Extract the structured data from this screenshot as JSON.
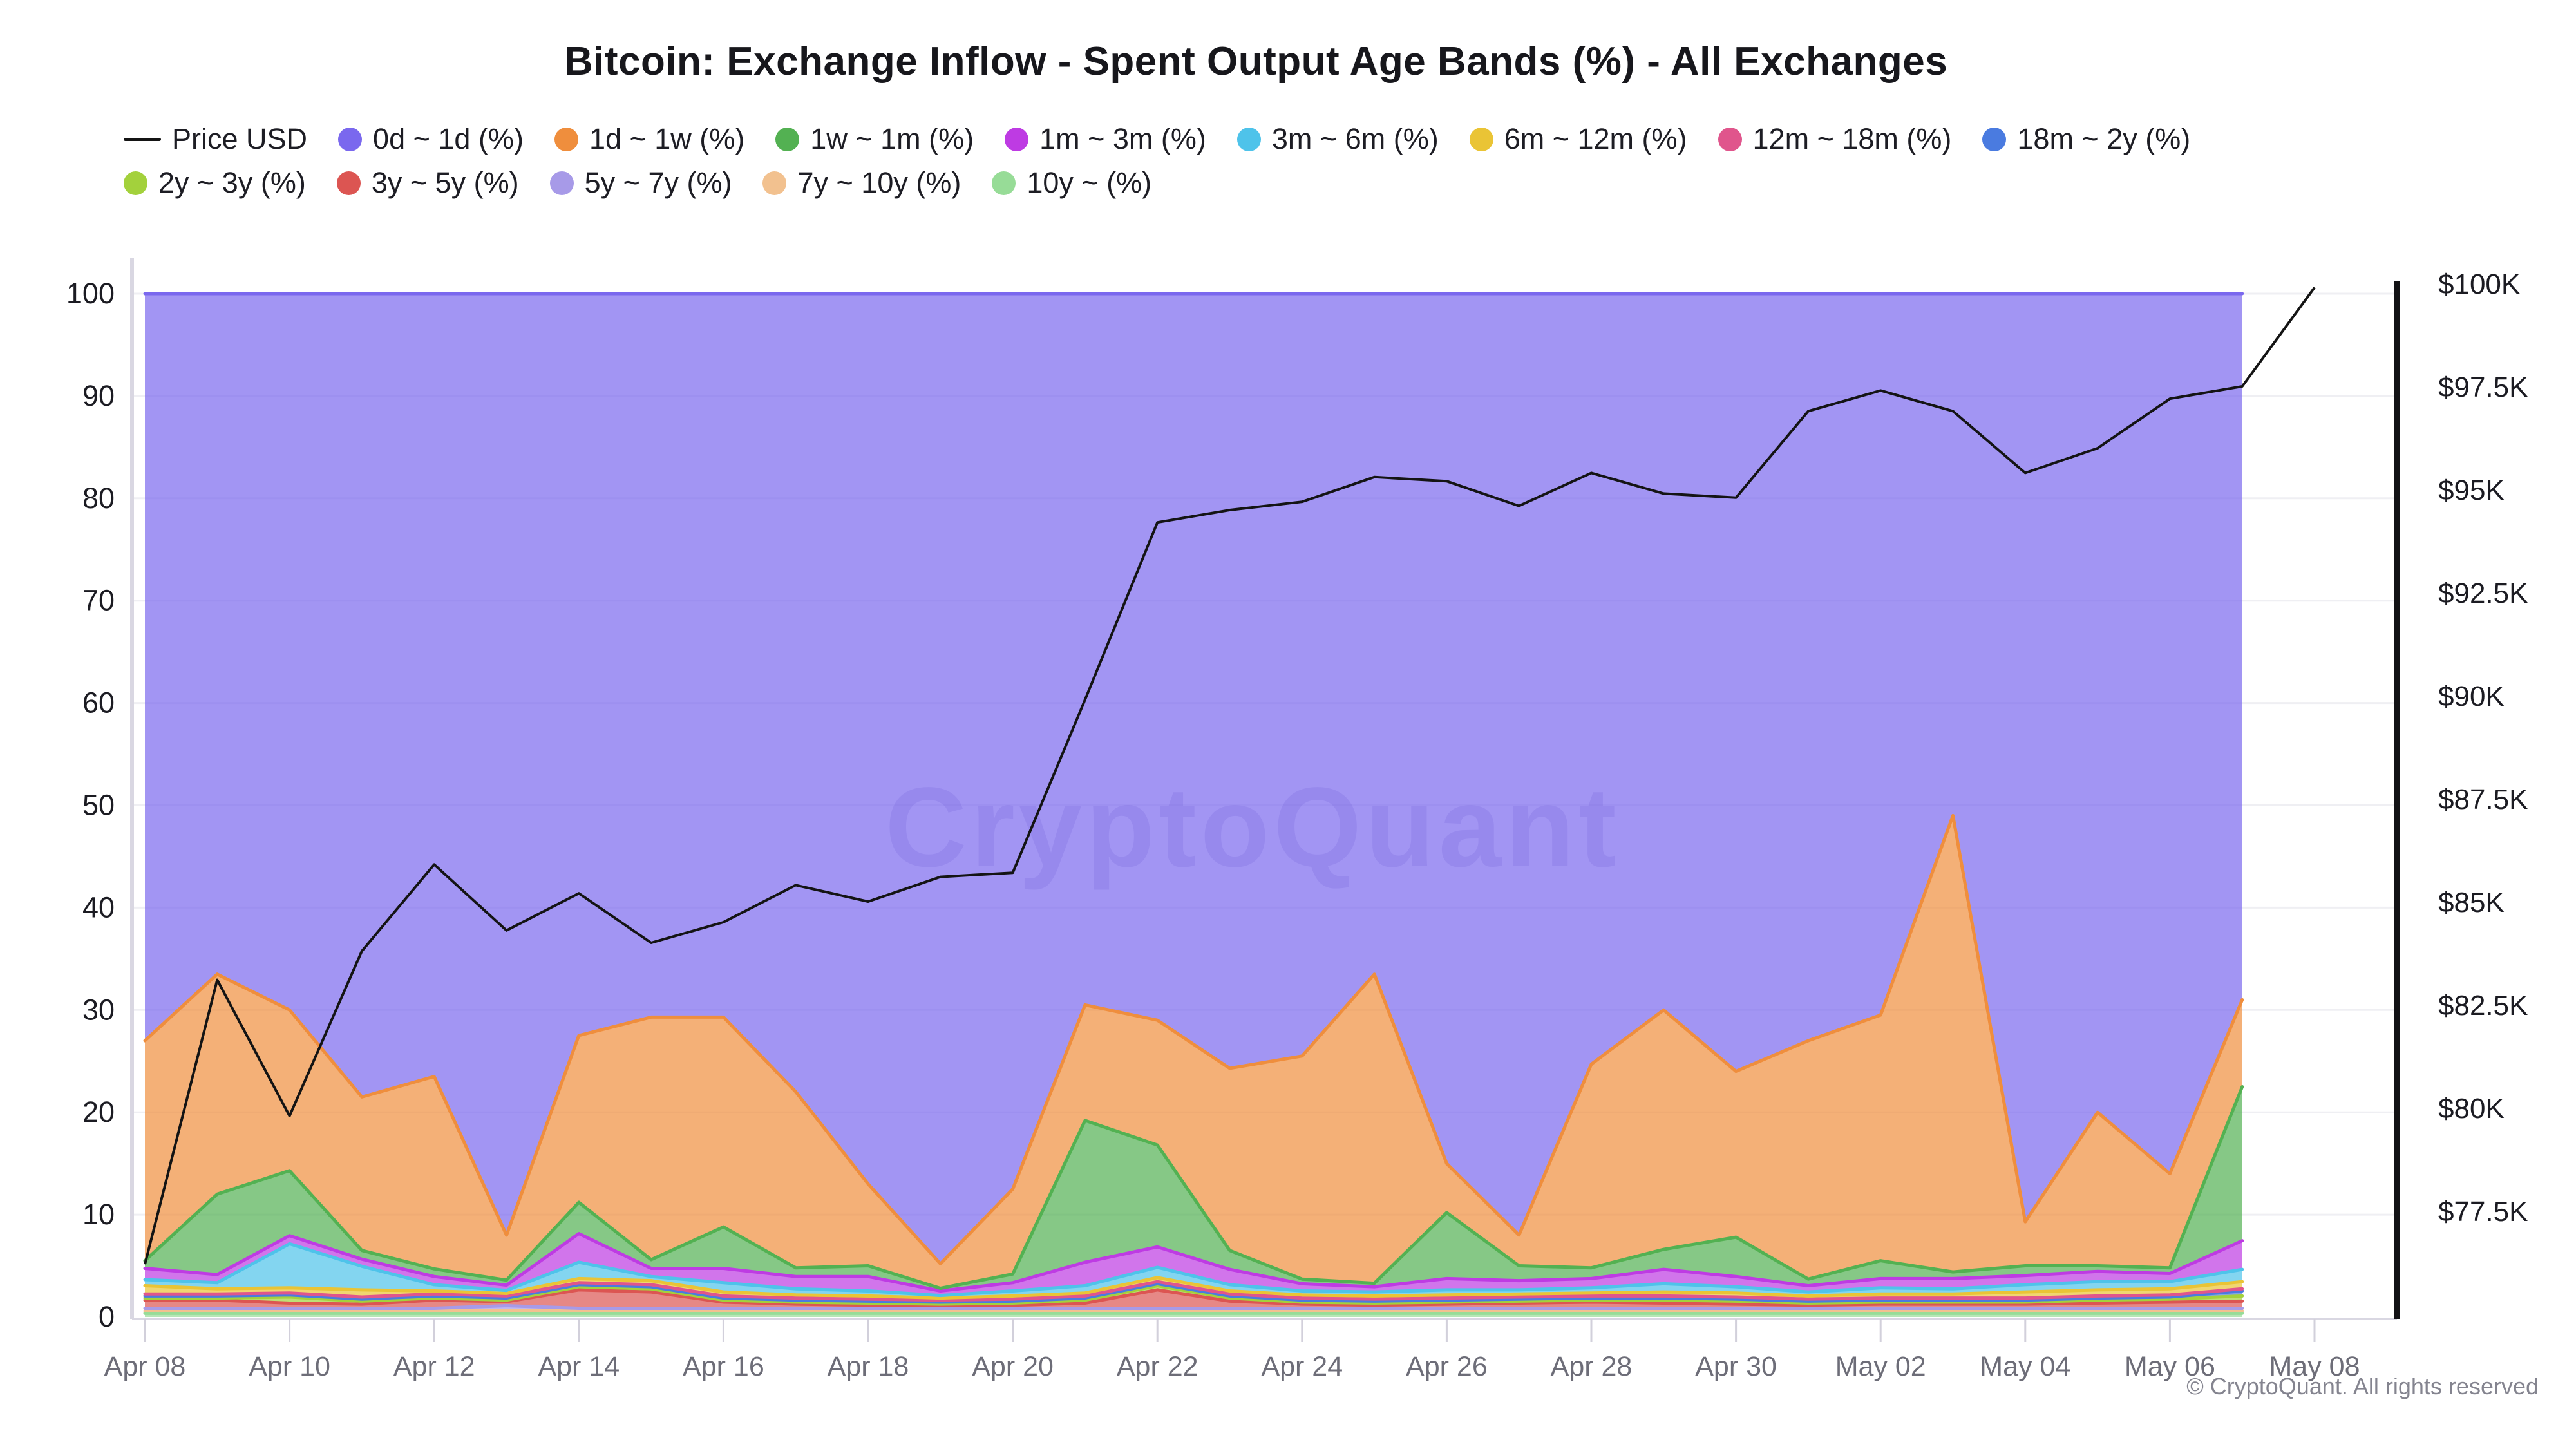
{
  "title": "Bitcoin: Exchange Inflow - Spent Output Age Bands (%) - All Exchanges",
  "watermark": "CryptoQuant",
  "copyright": "© CryptoQuant. All rights reserved",
  "accent_colors": {
    "price_line": "#141414",
    "left_axis_spine": "#d9d7e2",
    "right_axis_spine": "#121215",
    "gridline": "#efeff3",
    "x_label": "#6d6d78",
    "y_label": "#1b1b22"
  },
  "legend": {
    "rows": [
      [
        {
          "label": "Price USD",
          "color": "#141414",
          "type": "line"
        },
        {
          "label": "0d ~ 1d (%)",
          "color": "#7A68EE",
          "type": "dot"
        },
        {
          "label": "1d ~ 1w (%)",
          "color": "#EF8E3D",
          "type": "dot"
        },
        {
          "label": "1w ~ 1m (%)",
          "color": "#53B152",
          "type": "dot"
        },
        {
          "label": "1m ~ 3m (%)",
          "color": "#BE3BE3",
          "type": "dot"
        },
        {
          "label": "3m ~ 6m (%)",
          "color": "#4EC3EA",
          "type": "dot"
        },
        {
          "label": "6m ~ 12m (%)",
          "color": "#EAC435",
          "type": "dot"
        },
        {
          "label": "12m ~ 18m (%)",
          "color": "#E0558C",
          "type": "dot"
        },
        {
          "label": "18m ~ 2y (%)",
          "color": "#4A7BE0",
          "type": "dot"
        }
      ],
      [
        {
          "label": "2y ~ 3y (%)",
          "color": "#A3D13C",
          "type": "dot"
        },
        {
          "label": "3y ~ 5y (%)",
          "color": "#DC5552",
          "type": "dot"
        },
        {
          "label": "5y ~ 7y (%)",
          "color": "#A79AE8",
          "type": "dot"
        },
        {
          "label": "7y ~ 10y (%)",
          "color": "#F2C18F",
          "type": "dot"
        },
        {
          "label": "10y ~ (%)",
          "color": "#97DC97",
          "type": "dot"
        }
      ]
    ]
  },
  "chart_data": {
    "type": "area",
    "stacked": true,
    "title": "Bitcoin: Exchange Inflow - Spent Output Age Bands (%) - All Exchanges",
    "legend_position": "top",
    "grid": "horizontal-faint",
    "x": [
      "Apr 08",
      "Apr 09",
      "Apr 10",
      "Apr 11",
      "Apr 12",
      "Apr 13",
      "Apr 14",
      "Apr 15",
      "Apr 16",
      "Apr 17",
      "Apr 18",
      "Apr 19",
      "Apr 20",
      "Apr 21",
      "Apr 22",
      "Apr 23",
      "Apr 24",
      "Apr 25",
      "Apr 26",
      "Apr 27",
      "Apr 28",
      "Apr 29",
      "Apr 30",
      "May 01",
      "May 02",
      "May 03",
      "May 04",
      "May 05",
      "May 06",
      "May 07"
    ],
    "x_tick_labels": [
      "Apr 08",
      "Apr 10",
      "Apr 12",
      "Apr 14",
      "Apr 16",
      "Apr 18",
      "Apr 20",
      "Apr 22",
      "Apr 24",
      "Apr 26",
      "Apr 28",
      "Apr 30",
      "May 02",
      "May 04",
      "May 06",
      "May 08"
    ],
    "ylim_left": [
      0,
      100
    ],
    "yticks_left": [
      0,
      10,
      20,
      30,
      40,
      50,
      60,
      70,
      80,
      90,
      100
    ],
    "right_axis": {
      "unit": "USD",
      "ticks_k": [
        100,
        97.5,
        95,
        92.5,
        90,
        87.5,
        85,
        82.5,
        80,
        77.5
      ],
      "labels": [
        "$100K",
        "$97.5K",
        "$95K",
        "$92.5K",
        "$90K",
        "$87.5K",
        "$85K",
        "$82.5K",
        "$80K",
        "$77.5K"
      ]
    },
    "series": [
      {
        "name": "10y ~ (%)",
        "color": "#97DC97",
        "values": [
          0.35,
          0.35,
          0.35,
          0.35,
          0.35,
          0.35,
          0.35,
          0.35,
          0.35,
          0.35,
          0.35,
          0.35,
          0.35,
          0.35,
          0.35,
          0.35,
          0.35,
          0.35,
          0.35,
          0.35,
          0.35,
          0.35,
          0.35,
          0.35,
          0.35,
          0.35,
          0.35,
          0.35,
          0.35,
          0.35
        ]
      },
      {
        "name": "7y ~ 10y (%)",
        "color": "#F2C18F",
        "values": [
          0.25,
          0.25,
          0.25,
          0.25,
          0.25,
          0.25,
          0.25,
          0.25,
          0.25,
          0.25,
          0.25,
          0.25,
          0.25,
          0.25,
          0.25,
          0.25,
          0.25,
          0.25,
          0.25,
          0.25,
          0.25,
          0.25,
          0.25,
          0.25,
          0.25,
          0.25,
          0.25,
          0.25,
          0.25,
          0.25
        ]
      },
      {
        "name": "5y ~ 7y (%)",
        "color": "#A79AE8",
        "values": [
          0.25,
          0.25,
          0.25,
          0.25,
          0.25,
          0.5,
          0.25,
          0.25,
          0.25,
          0.25,
          0.25,
          0.25,
          0.25,
          0.25,
          0.25,
          0.25,
          0.25,
          0.25,
          0.25,
          0.25,
          0.25,
          0.25,
          0.25,
          0.25,
          0.25,
          0.25,
          0.25,
          0.25,
          0.25,
          0.25
        ]
      },
      {
        "name": "3y ~ 5y (%)",
        "color": "#DC5552",
        "values": [
          0.8,
          0.8,
          0.5,
          0.4,
          0.8,
          0.4,
          1.8,
          1.6,
          0.6,
          0.4,
          0.3,
          0.25,
          0.3,
          0.5,
          1.8,
          0.7,
          0.4,
          0.3,
          0.4,
          0.5,
          0.6,
          0.5,
          0.4,
          0.3,
          0.4,
          0.4,
          0.4,
          0.5,
          0.6,
          0.7
        ]
      },
      {
        "name": "2y ~ 3y (%)",
        "color": "#A3D13C",
        "values": [
          0.2,
          0.2,
          0.6,
          0.3,
          0.2,
          0.15,
          0.3,
          0.3,
          0.2,
          0.2,
          0.2,
          0.15,
          0.2,
          0.3,
          0.4,
          0.3,
          0.2,
          0.2,
          0.2,
          0.2,
          0.2,
          0.3,
          0.3,
          0.2,
          0.2,
          0.2,
          0.2,
          0.3,
          0.3,
          0.5
        ]
      },
      {
        "name": "18m ~ 2y (%)",
        "color": "#4A7BE0",
        "values": [
          0.2,
          0.2,
          0.2,
          0.2,
          0.2,
          0.2,
          0.2,
          0.2,
          0.2,
          0.2,
          0.2,
          0.2,
          0.2,
          0.2,
          0.2,
          0.2,
          0.2,
          0.2,
          0.2,
          0.2,
          0.2,
          0.2,
          0.2,
          0.2,
          0.2,
          0.2,
          0.2,
          0.2,
          0.2,
          0.5
        ]
      },
      {
        "name": "12m ~ 18m (%)",
        "color": "#E0558C",
        "values": [
          0.2,
          0.2,
          0.2,
          0.2,
          0.2,
          0.2,
          0.2,
          0.2,
          0.2,
          0.2,
          0.2,
          0.2,
          0.2,
          0.2,
          0.2,
          0.2,
          0.2,
          0.2,
          0.2,
          0.2,
          0.2,
          0.2,
          0.2,
          0.2,
          0.2,
          0.2,
          0.2,
          0.2,
          0.2,
          0.2
        ]
      },
      {
        "name": "6m ~ 12m (%)",
        "color": "#EAC435",
        "values": [
          0.8,
          0.5,
          0.5,
          0.7,
          0.3,
          0.25,
          0.4,
          0.4,
          0.4,
          0.3,
          0.3,
          0.2,
          0.3,
          0.3,
          0.4,
          0.3,
          0.3,
          0.3,
          0.3,
          0.3,
          0.3,
          0.4,
          0.4,
          0.3,
          0.4,
          0.4,
          0.6,
          0.6,
          0.6,
          0.7
        ]
      },
      {
        "name": "3m ~ 6m (%)",
        "color": "#4EC3EA",
        "values": [
          0.6,
          0.6,
          4.3,
          2.3,
          0.6,
          0.3,
          1.6,
          0.4,
          0.9,
          0.6,
          0.5,
          0.25,
          0.5,
          0.7,
          1.0,
          0.6,
          0.4,
          0.4,
          0.5,
          0.4,
          0.5,
          0.8,
          0.6,
          0.4,
          0.6,
          0.5,
          0.7,
          0.8,
          0.7,
          1.2
        ]
      },
      {
        "name": "1m ~ 3m (%)",
        "color": "#BE3BE3",
        "values": [
          1.1,
          0.8,
          0.8,
          0.7,
          0.8,
          0.5,
          2.8,
          0.8,
          1.4,
          1.2,
          1.4,
          0.45,
          0.8,
          2.3,
          2.0,
          1.5,
          0.7,
          0.5,
          1.1,
          0.9,
          0.9,
          1.4,
          1.0,
          0.6,
          0.9,
          1.0,
          0.9,
          1.0,
          0.8,
          2.8
        ]
      },
      {
        "name": "1w ~ 1m (%)",
        "color": "#53B152",
        "values": [
          0.75,
          7.85,
          6.35,
          0.85,
          0.75,
          0.5,
          3.05,
          0.85,
          4.05,
          0.85,
          1.05,
          0.25,
          0.85,
          13.85,
          9.95,
          1.85,
          0.45,
          0.35,
          6.45,
          1.45,
          1.05,
          1.95,
          3.85,
          0.65,
          1.75,
          0.65,
          0.95,
          0.55,
          0.55,
          15.05
        ]
      },
      {
        "name": "1d ~ 1w (%)",
        "color": "#EF8E3D",
        "values": [
          21.5,
          21.5,
          15.7,
          15.0,
          18.8,
          4.4,
          16.3,
          23.7,
          20.5,
          17.2,
          8.0,
          2.4,
          8.3,
          11.3,
          12.2,
          17.8,
          21.8,
          30.2,
          4.8,
          3.0,
          19.9,
          23.4,
          16.2,
          23.3,
          24.0,
          44.6,
          4.3,
          15.0,
          9.2,
          8.5
        ]
      },
      {
        "name": "0d ~ 1d (%)",
        "color": "#7A68EE",
        "values": "remainder"
      }
    ],
    "price_series": {
      "name": "Price USD",
      "color": "#141414",
      "x": [
        "Apr 08",
        "Apr 09",
        "Apr 10",
        "Apr 11",
        "Apr 12",
        "Apr 13",
        "Apr 14",
        "Apr 15",
        "Apr 16",
        "Apr 17",
        "Apr 18",
        "Apr 19",
        "Apr 20",
        "Apr 21",
        "Apr 22",
        "Apr 23",
        "Apr 24",
        "Apr 25",
        "Apr 26",
        "Apr 27",
        "Apr 28",
        "Apr 29",
        "Apr 30",
        "May 01",
        "May 02",
        "May 03",
        "May 04",
        "May 05",
        "May 06",
        "May 07",
        "May 08"
      ],
      "values_usd_k": [
        76.2,
        83.1,
        79.8,
        83.8,
        85.9,
        84.3,
        85.2,
        84.0,
        84.5,
        85.4,
        85.0,
        85.6,
        85.7,
        89.9,
        94.2,
        94.5,
        94.7,
        95.3,
        95.2,
        94.6,
        95.4,
        94.9,
        94.8,
        96.9,
        97.4,
        96.9,
        95.4,
        96.0,
        97.2,
        97.5,
        99.9
      ]
    }
  }
}
